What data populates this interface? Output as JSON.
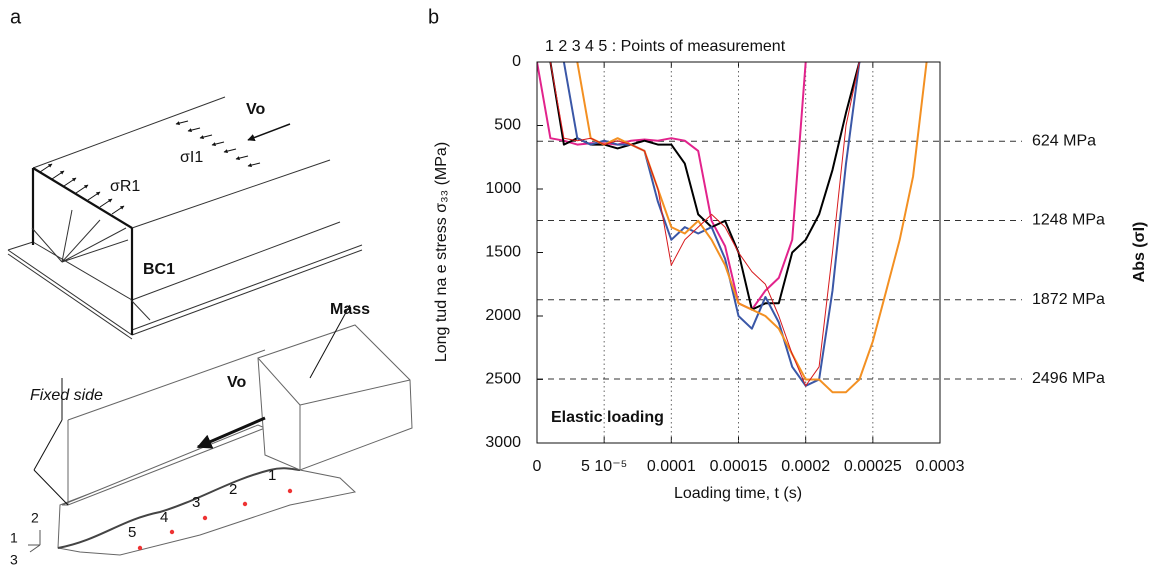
{
  "panel_a": {
    "label": "a",
    "vo_top": "Vo",
    "sigma_r1": "σR1",
    "sigma_i1": "σI1",
    "bc1": "BC1",
    "mass": "Mass",
    "vo_bottom": "Vo",
    "fixed_side": "Fixed side",
    "points": [
      "1",
      "2",
      "3",
      "4",
      "5"
    ],
    "axes": [
      "1",
      "2",
      "3"
    ]
  },
  "chart_data": {
    "type": "line",
    "panel_label": "b",
    "annotation": "1 2 3 4 5 : Points of measurement",
    "note": "Elastic loading",
    "xlabel": "Loading time, t (s)",
    "ylabel": "Long tud na e stress  σ₃₃ (MPa)",
    "y2label": "Abs (σI)",
    "x": [
      0,
      1e-05,
      2e-05,
      3e-05,
      4e-05,
      5e-05,
      6e-05,
      7e-05,
      8e-05,
      9e-05,
      0.0001,
      0.00011,
      0.00012,
      0.00013,
      0.00014,
      0.00015,
      0.00016,
      0.00017,
      0.00018,
      0.00019,
      0.0002,
      0.00021,
      0.00022,
      0.00023,
      0.00024,
      0.00025,
      0.00026,
      0.00027,
      0.00028,
      0.00029,
      0.0003
    ],
    "series": [
      {
        "color": "#e2238c",
        "values": [
          0,
          600,
          620,
          650,
          640,
          640,
          650,
          620,
          610,
          620,
          600,
          620,
          700,
          1250,
          1450,
          1900,
          1950,
          1800,
          1700,
          1400,
          0,
          null,
          null,
          null,
          null,
          null,
          null,
          null,
          null,
          null,
          null
        ]
      },
      {
        "color": "#000000",
        "values": [
          null,
          0,
          650,
          600,
          650,
          650,
          680,
          650,
          620,
          650,
          650,
          800,
          1200,
          1300,
          1250,
          1500,
          1950,
          1900,
          1900,
          1500,
          1400,
          1200,
          850,
          400,
          0,
          null,
          null,
          null,
          null,
          null,
          null
        ]
      },
      {
        "color": "#3a57a7",
        "values": [
          null,
          null,
          0,
          600,
          650,
          620,
          650,
          650,
          700,
          1100,
          1400,
          1300,
          1350,
          1300,
          1550,
          2000,
          2100,
          1850,
          2050,
          2400,
          2550,
          2500,
          1800,
          800,
          0,
          null,
          null,
          null,
          null,
          null,
          null
        ]
      },
      {
        "color": "#f39022",
        "values": [
          null,
          null,
          null,
          0,
          600,
          650,
          600,
          650,
          700,
          1000,
          1300,
          1350,
          1250,
          1400,
          1600,
          1900,
          1950,
          2000,
          2100,
          2300,
          2500,
          2500,
          2600,
          2600,
          2500,
          2200,
          1800,
          1400,
          900,
          0,
          null
        ]
      },
      {
        "color": "#d7191c",
        "values": [
          null,
          0,
          600,
          620,
          600,
          650,
          620,
          650,
          700,
          1000,
          1600,
          1400,
          1300,
          1200,
          1300,
          1500,
          1650,
          1750,
          2000,
          2300,
          2550,
          2400,
          1500,
          500,
          0,
          null,
          null,
          null,
          null,
          null,
          null
        ]
      }
    ],
    "xlim": [
      0,
      0.0003
    ],
    "xticks": [
      0,
      {
        "value": 5e-05,
        "label": "5 10⁻⁵"
      },
      0.0001,
      0.00015,
      0.0002,
      0.00025,
      0.0003
    ],
    "ylim": [
      0,
      3000
    ],
    "yticks": [
      0,
      500,
      1000,
      1500,
      2000,
      2500,
      3000
    ],
    "y_inverted": true,
    "grid": "x",
    "ref_lines": [
      {
        "value": 624,
        "label": "624 MPa"
      },
      {
        "value": 1248,
        "label": "1248 MPa"
      },
      {
        "value": 1872,
        "label": "1872 MPa"
      },
      {
        "value": 2496,
        "label": "2496 MPa"
      }
    ]
  }
}
